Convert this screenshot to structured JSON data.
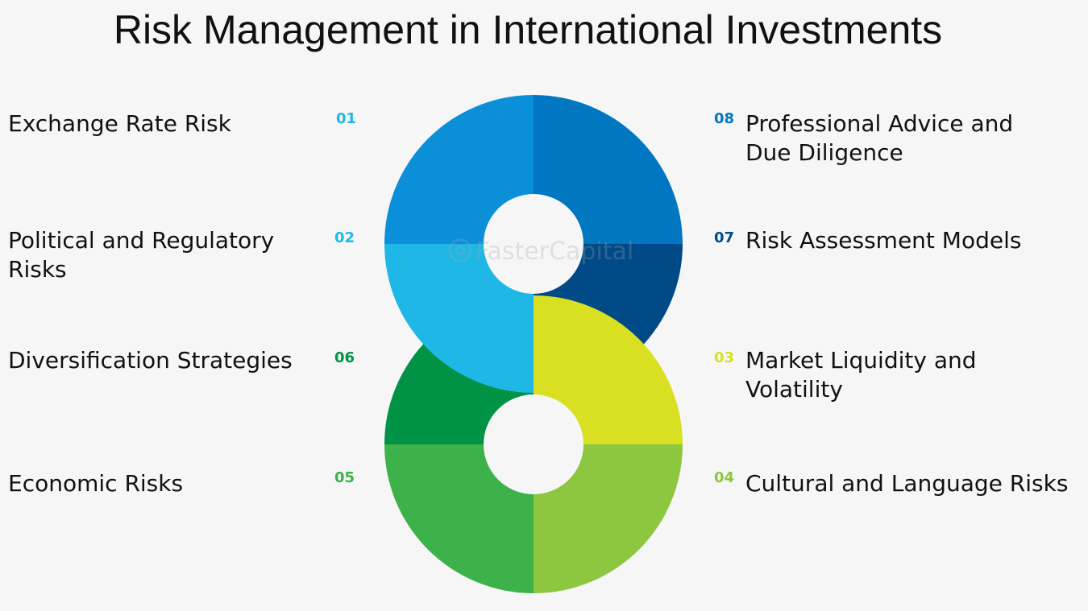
{
  "title": "Risk Management in International Investments",
  "watermark": "FasterCapital",
  "items": [
    {
      "num": "01",
      "label": "Exchange Rate Risk",
      "color": "#0a8fd8"
    },
    {
      "num": "02",
      "label": "Political and Regulatory\nRisks",
      "color": "#1fb7e6"
    },
    {
      "num": "03",
      "label": "Market Liquidity and\nVolatility",
      "color": "#d9e021"
    },
    {
      "num": "04",
      "label": "Cultural and Language Risks",
      "color": "#8dc63f"
    },
    {
      "num": "05",
      "label": "Economic Risks",
      "color": "#3db14a"
    },
    {
      "num": "06",
      "label": "Diversification Strategies",
      "color": "#009245"
    },
    {
      "num": "07",
      "label": "Risk Assessment Models",
      "color": "#004b87"
    },
    {
      "num": "08",
      "label": "Professional Advice and\nDue Diligence",
      "color": "#0077c0"
    }
  ]
}
